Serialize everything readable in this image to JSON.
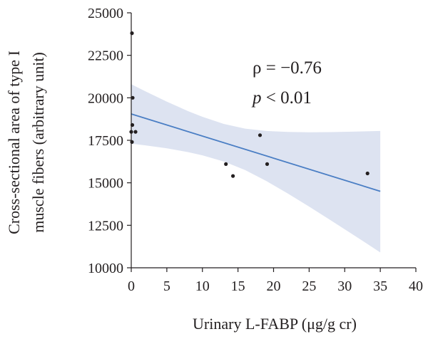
{
  "chart_data": {
    "type": "scatter",
    "title": "",
    "xlabel": "Urinary L-FABP (μg/g cr)",
    "ylabel_line1": "Cross-sectional area of type I",
    "ylabel_line2": "muscle fibers (arbitrary unit)",
    "xlim": [
      0,
      40
    ],
    "ylim": [
      10000,
      25000
    ],
    "x_ticks": [
      0,
      5,
      10,
      15,
      20,
      25,
      30,
      35,
      40
    ],
    "y_ticks": [
      10000,
      12500,
      15000,
      17500,
      20000,
      22500,
      25000
    ],
    "grid": false,
    "legend": "none",
    "points": [
      {
        "x": 0.1,
        "y": 23800
      },
      {
        "x": 0.2,
        "y": 20000
      },
      {
        "x": 0.15,
        "y": 18400
      },
      {
        "x": 0.0,
        "y": 18000
      },
      {
        "x": 0.6,
        "y": 18000
      },
      {
        "x": 0.1,
        "y": 17400
      },
      {
        "x": 13.3,
        "y": 16100
      },
      {
        "x": 14.3,
        "y": 15400
      },
      {
        "x": 18.1,
        "y": 17800
      },
      {
        "x": 19.1,
        "y": 16100
      },
      {
        "x": 33.2,
        "y": 15550
      }
    ],
    "regression_line": {
      "x": [
        0,
        35
      ],
      "y": [
        19050,
        14500
      ]
    },
    "confidence_band": {
      "x": [
        0,
        35
      ],
      "upper": [
        20800,
        18050
      ],
      "lower": [
        17300,
        10900
      ],
      "shape_x": [
        0,
        2,
        5,
        8,
        10,
        13,
        16,
        19,
        22,
        25,
        28,
        31,
        33,
        35
      ]
    },
    "annotation_rho": "ρ = −0.76",
    "annotation_p_symbol": "p",
    "annotation_p_rest": " < 0.01",
    "colors": {
      "points": "#231f20",
      "line": "#4a7ec4",
      "band": "#dde3f1",
      "axis": "#231f20",
      "text": "#231f20"
    }
  }
}
